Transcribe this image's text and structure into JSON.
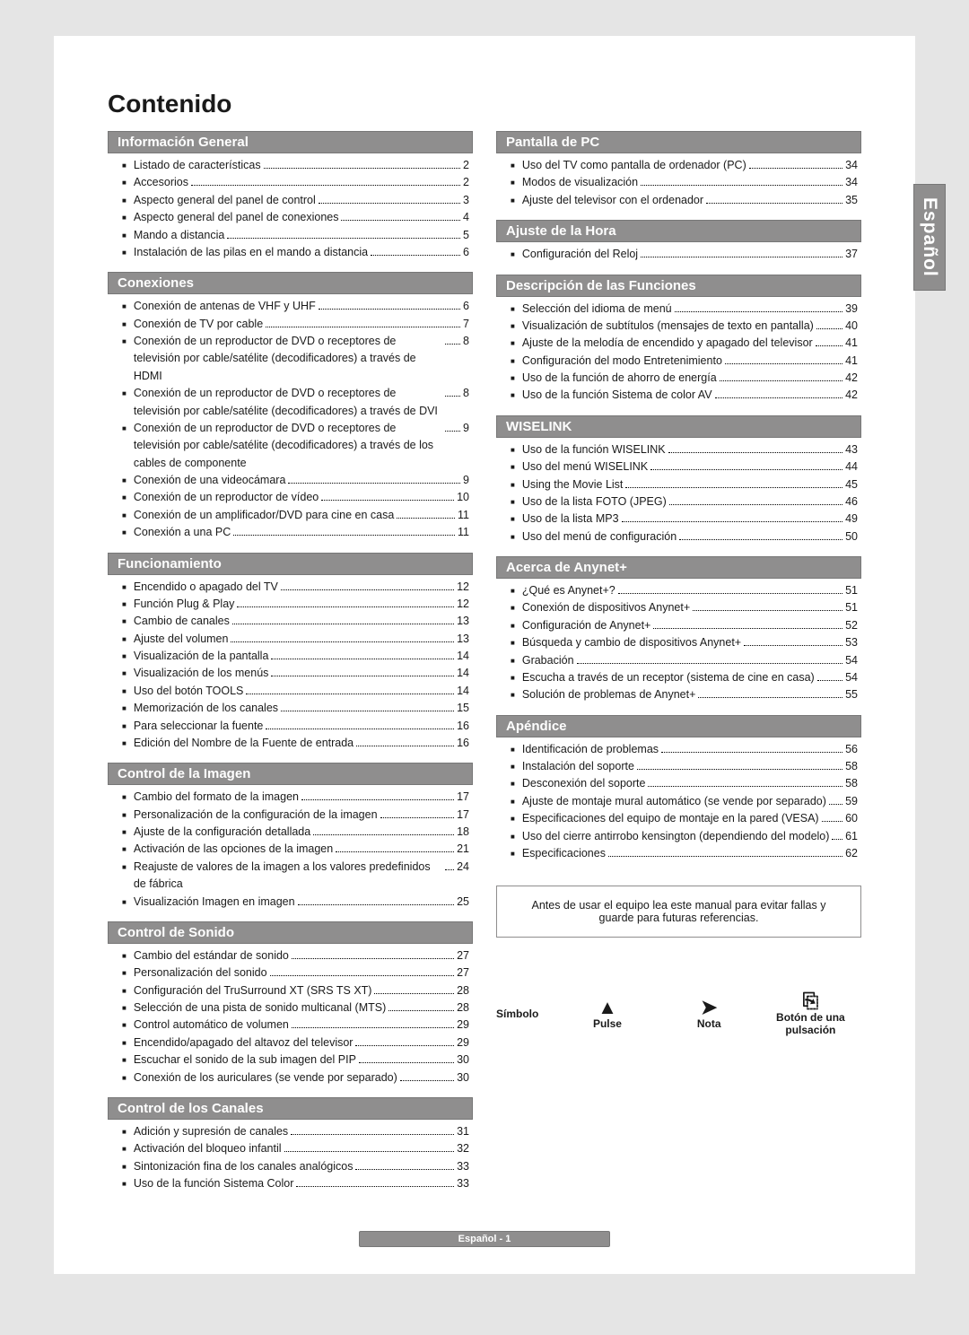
{
  "title": "Contenido",
  "side_tab": "Español",
  "warning": "Antes de usar el equipo lea este manual para evitar fallas y guarde para futuras referencias.",
  "symbol_label": "Símbolo",
  "symbols": [
    {
      "icon": "▲",
      "label": "Pulse"
    },
    {
      "icon": "➤",
      "label": "Nota"
    },
    {
      "icon": "⎘",
      "label": "Botón de una pulsación"
    }
  ],
  "footer": "Español - 1",
  "left": [
    {
      "title": "Información General",
      "items": [
        {
          "label": "Listado de características",
          "page": "2"
        },
        {
          "label": "Accesorios",
          "page": "2"
        },
        {
          "label": "Aspecto general del panel de control",
          "page": "3"
        },
        {
          "label": "Aspecto general del panel de conexiones",
          "page": "4"
        },
        {
          "label": "Mando a distancia",
          "page": "5"
        },
        {
          "label": "Instalación de las pilas en el mando a distancia",
          "page": "6"
        }
      ]
    },
    {
      "title": "Conexiones",
      "items": [
        {
          "label": "Conexión de antenas de VHF y UHF",
          "page": "6"
        },
        {
          "label": "Conexión de TV por cable",
          "page": "7"
        },
        {
          "label": "Conexión de un reproductor de DVD o receptores de televisión por cable/satélite (decodificadores) a través de HDMI",
          "page": "8",
          "multi": true
        },
        {
          "label": "Conexión de un reproductor de DVD o receptores de televisión por cable/satélite (decodificadores) a través de DVI",
          "page": "8",
          "multi": true
        },
        {
          "label": "Conexión de un reproductor de DVD o receptores de televisión por cable/satélite (decodificadores) a través de los cables de componente",
          "page": "9",
          "multi": true
        },
        {
          "label": "Conexión de una videocámara",
          "page": "9"
        },
        {
          "label": "Conexión de un reproductor de vídeo",
          "page": "10"
        },
        {
          "label": "Conexión de un amplificador/DVD para cine en casa",
          "page": "11"
        },
        {
          "label": "Conexión a una PC",
          "page": "11"
        }
      ]
    },
    {
      "title": "Funcionamiento",
      "items": [
        {
          "label": "Encendido o apagado del TV",
          "page": "12"
        },
        {
          "label": "Función Plug & Play",
          "page": "12"
        },
        {
          "label": "Cambio de canales",
          "page": "13"
        },
        {
          "label": "Ajuste del volumen",
          "page": "13"
        },
        {
          "label": "Visualización de la pantalla",
          "page": "14"
        },
        {
          "label": "Visualización de los menús",
          "page": "14"
        },
        {
          "label": "Uso del botón TOOLS",
          "page": "14"
        },
        {
          "label": "Memorización de los canales",
          "page": "15"
        },
        {
          "label": "Para seleccionar la fuente",
          "page": "16"
        },
        {
          "label": "Edición del Nombre de la Fuente de entrada",
          "page": "16"
        }
      ]
    },
    {
      "title": "Control de la Imagen",
      "items": [
        {
          "label": "Cambio del formato de la imagen",
          "page": "17"
        },
        {
          "label": "Personalización de la configuración de la imagen",
          "page": "17"
        },
        {
          "label": "Ajuste de la configuración detallada",
          "page": "18"
        },
        {
          "label": "Activación de las opciones de la imagen",
          "page": "21"
        },
        {
          "label": "Reajuste de valores de la imagen a los valores predefinidos de fábrica",
          "page": "24",
          "multi": true
        },
        {
          "label": "Visualización Imagen en imagen",
          "page": "25"
        }
      ]
    },
    {
      "title": "Control de Sonido",
      "items": [
        {
          "label": "Cambio del estándar de sonido",
          "page": "27"
        },
        {
          "label": "Personalización del sonido",
          "page": "27"
        },
        {
          "label": "Configuración del TruSurround XT (SRS TS XT)",
          "page": "28"
        },
        {
          "label": "Selección de una pista de sonido multicanal (MTS)",
          "page": "28"
        },
        {
          "label": "Control automático de volumen",
          "page": "29"
        },
        {
          "label": "Encendido/apagado del altavoz del televisor",
          "page": "29"
        },
        {
          "label": "Escuchar el sonido de la sub imagen del PIP",
          "page": "30"
        },
        {
          "label": "Conexión de los auriculares (se vende por separado)",
          "page": "30"
        }
      ]
    },
    {
      "title": "Control de los Canales",
      "items": [
        {
          "label": "Adición y supresión de canales",
          "page": "31"
        },
        {
          "label": "Activación del bloqueo infantil",
          "page": "32"
        },
        {
          "label": "Sintonización fina de los canales analógicos",
          "page": "33"
        },
        {
          "label": "Uso de la función Sistema Color",
          "page": "33"
        }
      ]
    }
  ],
  "right": [
    {
      "title": "Pantalla de PC",
      "items": [
        {
          "label": "Uso del TV como pantalla de ordenador (PC)",
          "page": "34"
        },
        {
          "label": "Modos de visualización",
          "page": "34"
        },
        {
          "label": "Ajuste del televisor con el ordenador",
          "page": "35"
        }
      ]
    },
    {
      "title": "Ajuste de la Hora",
      "items": [
        {
          "label": "Configuración del Reloj",
          "page": "37"
        }
      ]
    },
    {
      "title": "Descripción de las Funciones",
      "items": [
        {
          "label": "Selección del idioma de menú",
          "page": "39"
        },
        {
          "label": "Visualización de subtítulos (mensajes de texto en pantalla)",
          "page": "40",
          "multi": true
        },
        {
          "label": "Ajuste de la melodía de encendido y apagado del televisor",
          "page": "41",
          "multi": true
        },
        {
          "label": "Configuración del modo Entretenimiento",
          "page": "41"
        },
        {
          "label": "Uso de la función de ahorro de energía",
          "page": "42"
        },
        {
          "label": "Uso de la función Sistema de color AV",
          "page": "42"
        }
      ]
    },
    {
      "title": "WISELINK",
      "items": [
        {
          "label": "Uso de la función WISELINK",
          "page": "43"
        },
        {
          "label": "Uso del menú WISELINK",
          "page": "44"
        },
        {
          "label": "Using the Movie List",
          "page": "45"
        },
        {
          "label": "Uso de la lista FOTO (JPEG)",
          "page": "46"
        },
        {
          "label": "Uso de la lista MP3",
          "page": "49"
        },
        {
          "label": "Uso del menú de configuración",
          "page": "50"
        }
      ]
    },
    {
      "title": "Acerca de Anynet+",
      "items": [
        {
          "label": "¿Qué es Anynet+?",
          "page": "51"
        },
        {
          "label": "Conexión de dispositivos Anynet+",
          "page": "51"
        },
        {
          "label": "Configuración de Anynet+",
          "page": "52"
        },
        {
          "label": "Búsqueda y cambio de dispositivos Anynet+",
          "page": "53"
        },
        {
          "label": "Grabación",
          "page": "54"
        },
        {
          "label": "Escucha a través de un receptor (sistema de cine en casa)",
          "page": "54",
          "multi": true
        },
        {
          "label": "Solución de problemas de Anynet+",
          "page": "55"
        }
      ]
    },
    {
      "title": "Apéndice",
      "items": [
        {
          "label": "Identificación de problemas",
          "page": "56"
        },
        {
          "label": "Instalación del soporte",
          "page": "58"
        },
        {
          "label": "Desconexión del soporte",
          "page": "58"
        },
        {
          "label": "Ajuste de montaje mural automático (se vende por separado)",
          "page": "59",
          "multi": true
        },
        {
          "label": "Especificaciones del equipo de montaje en la pared (VESA)",
          "page": "60",
          "multi": true
        },
        {
          "label": "Uso del cierre antirrobo kensington (dependiendo del modelo)",
          "page": "61",
          "multi": true
        },
        {
          "label": "Especificaciones",
          "page": "62"
        }
      ]
    }
  ]
}
